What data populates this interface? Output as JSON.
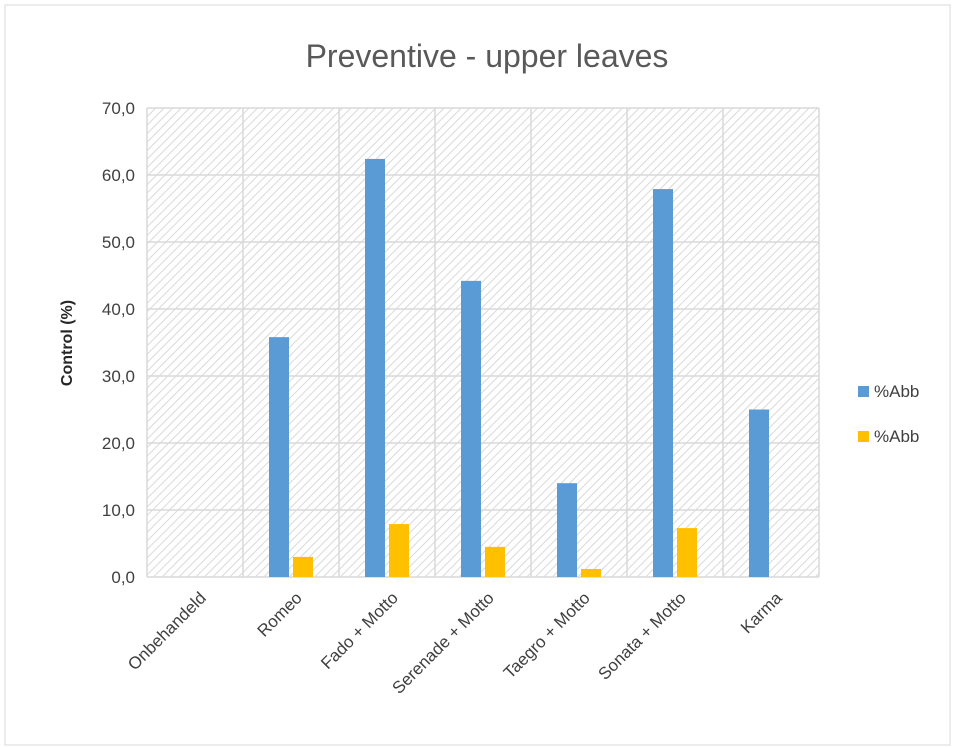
{
  "chart_data": {
    "type": "bar",
    "title": "Preventive - upper leaves",
    "xlabel": "",
    "ylabel": "Control (%)",
    "ylim": [
      0,
      70
    ],
    "yticks": [
      "0,0",
      "10,0",
      "20,0",
      "30,0",
      "40,0",
      "50,0",
      "60,0",
      "70,0"
    ],
    "categories": [
      "Onbehandeld",
      "Romeo",
      "Fado + Motto",
      "Serenade + Motto",
      "Taegro + Motto",
      "Sonata + Motto",
      "Karma"
    ],
    "series": [
      {
        "name": "%Abb",
        "color": "#5B9BD5",
        "values": [
          0,
          35.8,
          62.4,
          44.2,
          14.0,
          57.9,
          25.0
        ]
      },
      {
        "name": "%Abb",
        "color": "#FFC000",
        "values": [
          0,
          3.0,
          7.9,
          4.5,
          1.2,
          7.3,
          0
        ]
      }
    ],
    "grid": true,
    "plot_background": "hatched",
    "legend_position": "right"
  }
}
